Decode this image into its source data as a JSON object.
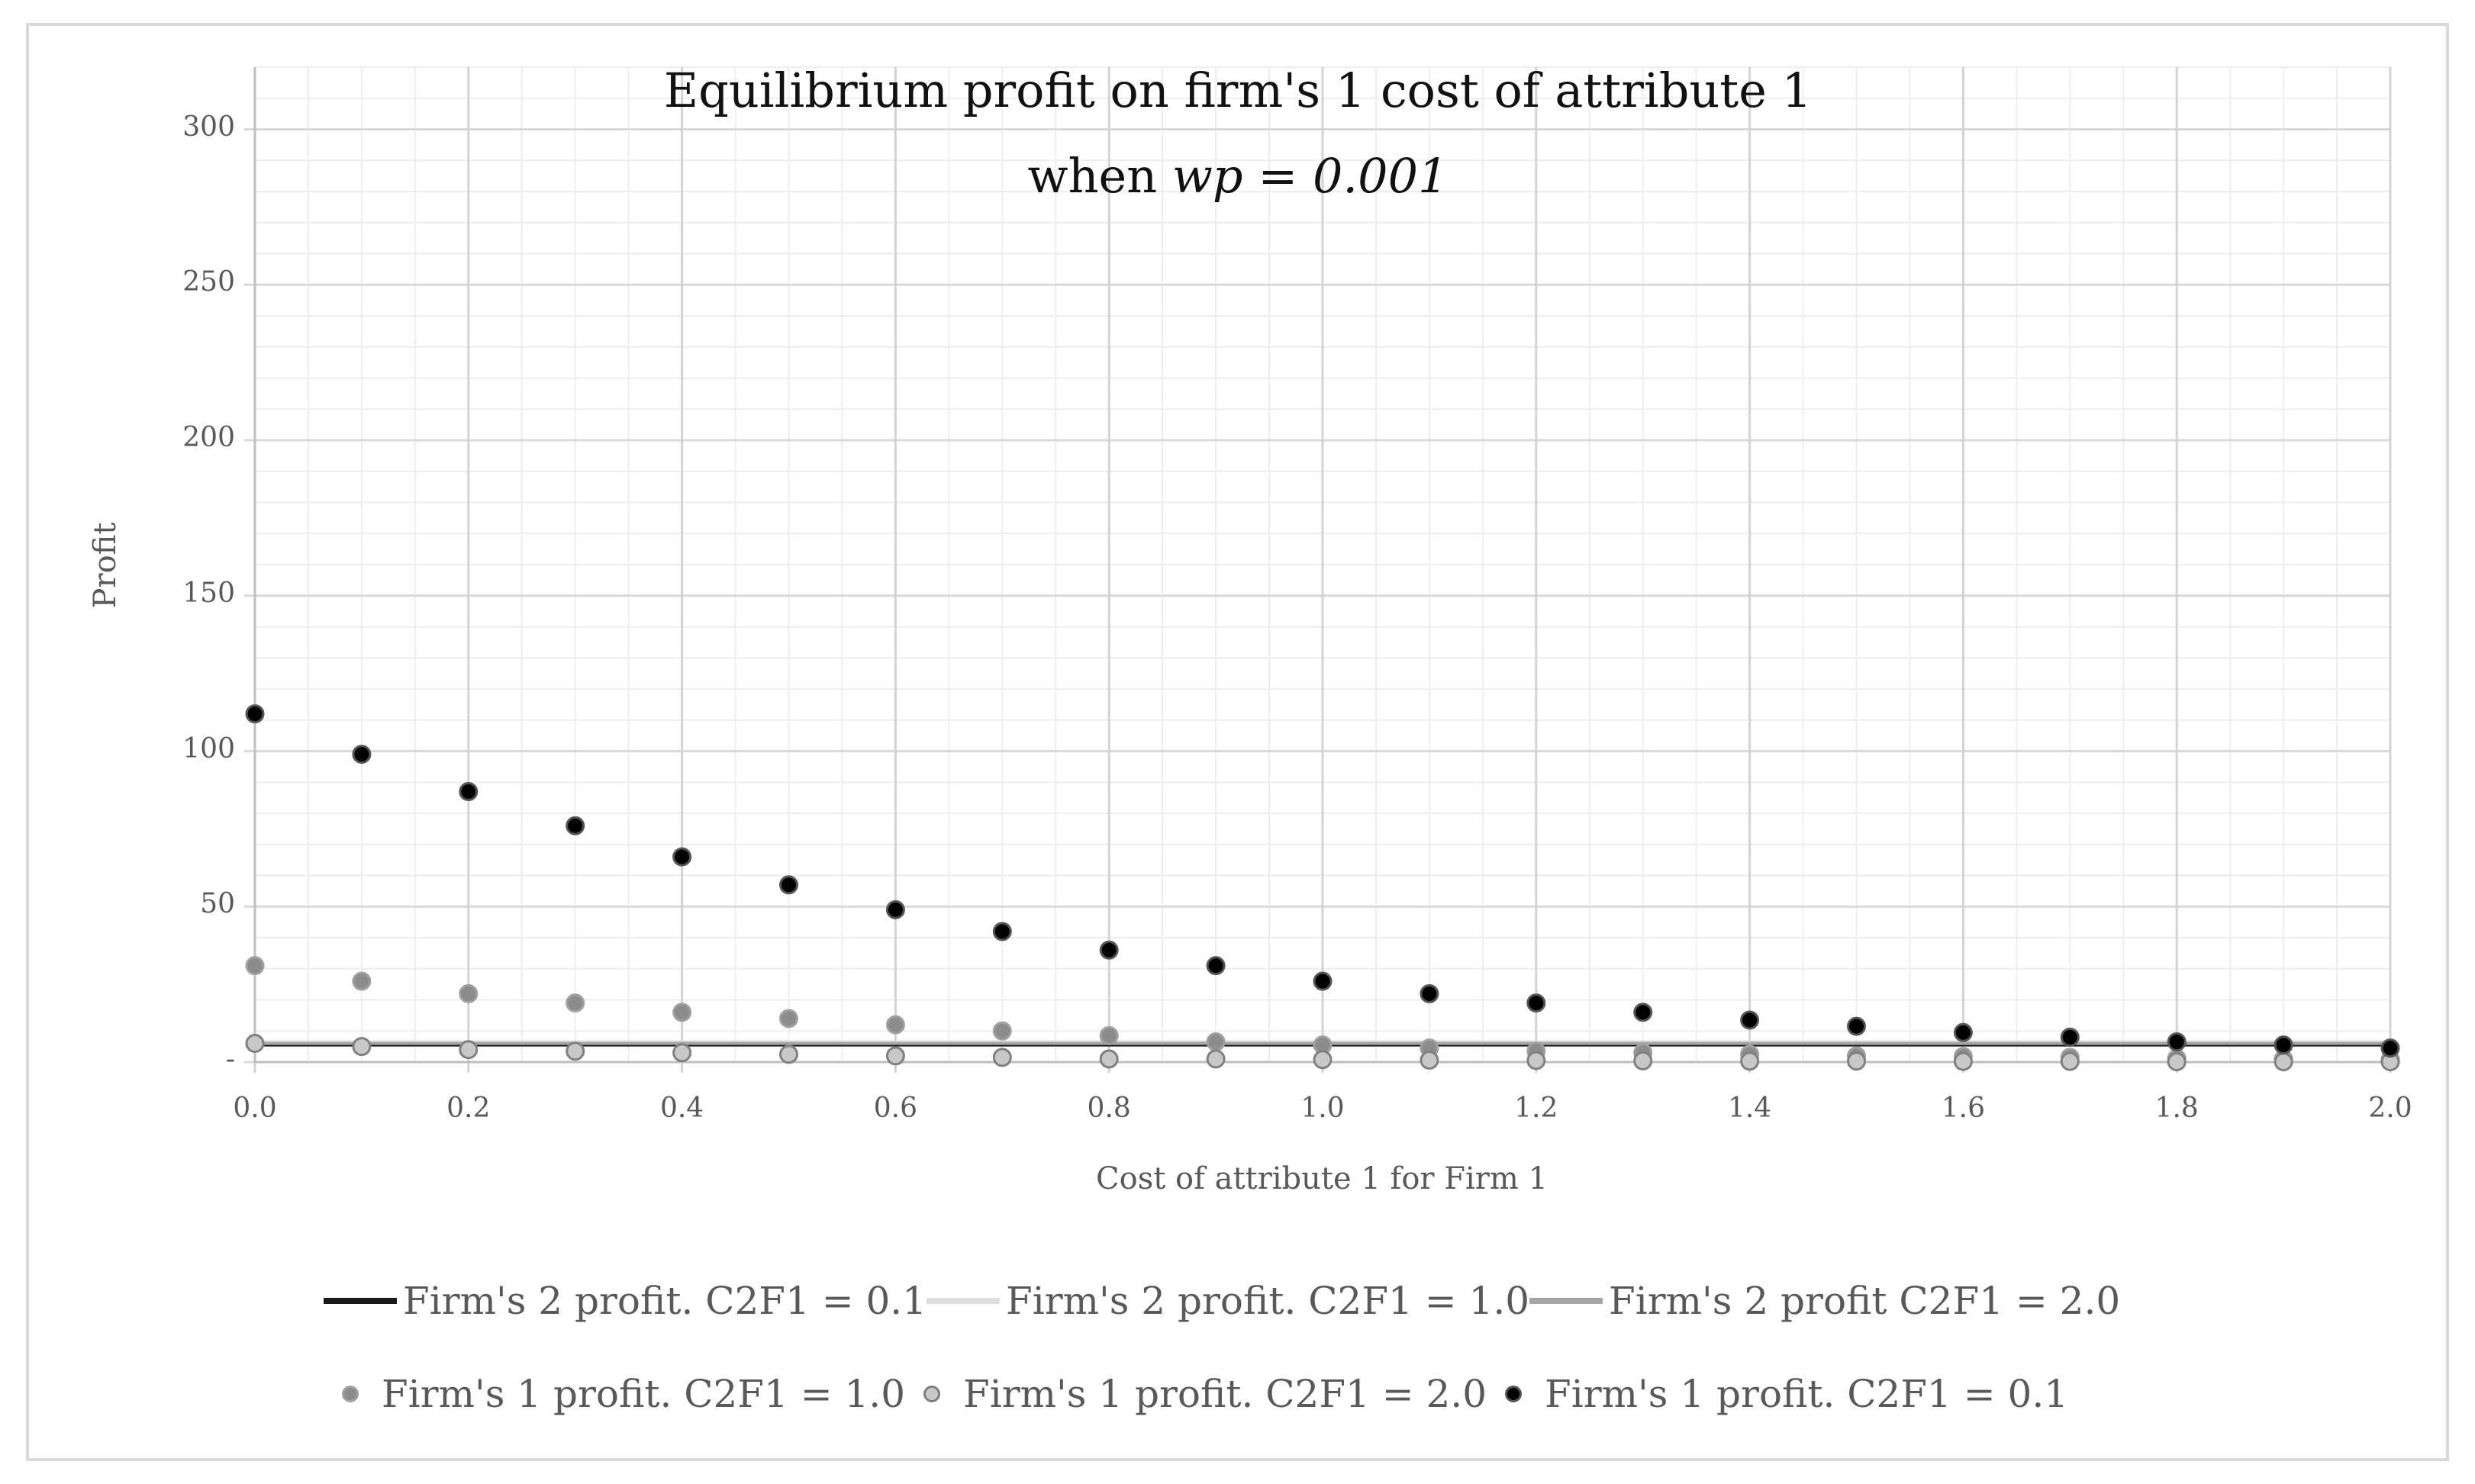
{
  "chart_data": {
    "type": "scatter",
    "title": "Equilibrium profit on firm's 1 cost of attribute 1",
    "subtitle_prefix": "when ",
    "subtitle_italic": "wp = 0.001",
    "xlabel": "Cost of attribute 1 for Firm 1",
    "ylabel": "Profit",
    "xlim": [
      0,
      2
    ],
    "ylim": [
      0,
      320
    ],
    "x_ticks": [
      "0.0",
      "0.2",
      "0.4",
      "0.6",
      "0.8",
      "1.0",
      "1.2",
      "1.4",
      "1.6",
      "1.8",
      "2.0"
    ],
    "y_ticks": [
      "-",
      "50",
      "100",
      "150",
      "200",
      "250",
      "300"
    ],
    "x": [
      0.0,
      0.1,
      0.2,
      0.3,
      0.4,
      0.5,
      0.6,
      0.7,
      0.8,
      0.9,
      1.0,
      1.1,
      1.2,
      1.3,
      1.4,
      1.5,
      1.6,
      1.7,
      1.8,
      1.9,
      2.0
    ],
    "series": [
      {
        "name": "Firm's 2 profit. C2F1 = 0.1",
        "kind": "line",
        "color": "#1a1a1a",
        "values": [
          5.5,
          5.5,
          5.5,
          5.5,
          5.5,
          5.5,
          5.5,
          5.5,
          5.5,
          5.5,
          5.5,
          5.5,
          5.5,
          5.5,
          5.5,
          5.5,
          5.5,
          5.5,
          5.5,
          5.5,
          5.5
        ]
      },
      {
        "name": "Firm's 2 profit. C2F1 = 1.0",
        "kind": "line",
        "color": "#dedede",
        "values": [
          6.5,
          6.5,
          6.5,
          6.5,
          6.5,
          6.5,
          6.5,
          6.5,
          6.5,
          6.5,
          6.5,
          6.5,
          6.5,
          6.5,
          6.5,
          6.5,
          6.5,
          6.5,
          6.5,
          6.5,
          6.5
        ]
      },
      {
        "name": "Firm's 2 profit C2F1 = 2.0",
        "kind": "line",
        "color": "#a6a6a6",
        "values": [
          6,
          6,
          6,
          6,
          6,
          6,
          6,
          6,
          6,
          6,
          6,
          6,
          6,
          6,
          6,
          6,
          6,
          6,
          6,
          6,
          6
        ]
      },
      {
        "name": "Firm's 1 profit. C2F1 = 1.0",
        "kind": "scatter",
        "color": "#8c8c8c",
        "stroke": "#a0a0a0",
        "values": [
          31,
          26,
          22,
          19,
          16,
          14,
          12,
          10,
          8.5,
          6.5,
          5.5,
          4.5,
          3.5,
          3,
          2.5,
          2,
          1.8,
          1.5,
          1.2,
          1,
          0.8
        ]
      },
      {
        "name": "Firm's 1 profit. C2F1 = 2.0",
        "kind": "scatter",
        "color": "#c8c8c8",
        "stroke": "#808080",
        "values": [
          6,
          5,
          4,
          3.5,
          3,
          2.5,
          2,
          1.5,
          1,
          1,
          0.8,
          0.6,
          0.5,
          0.4,
          0.3,
          0.3,
          0.2,
          0.2,
          0.1,
          0.1,
          0.1
        ]
      },
      {
        "name": "Firm's 1 profit. C2F1 = 0.1",
        "kind": "scatter",
        "color": "#000000",
        "stroke": "#555555",
        "values": [
          112,
          99,
          87,
          76,
          66,
          57,
          49,
          42,
          36,
          31,
          26,
          22,
          19,
          16,
          13.5,
          11.5,
          9.5,
          8,
          6.5,
          5.5,
          4.5
        ]
      }
    ],
    "grid": true,
    "legend_position": "bottom"
  }
}
